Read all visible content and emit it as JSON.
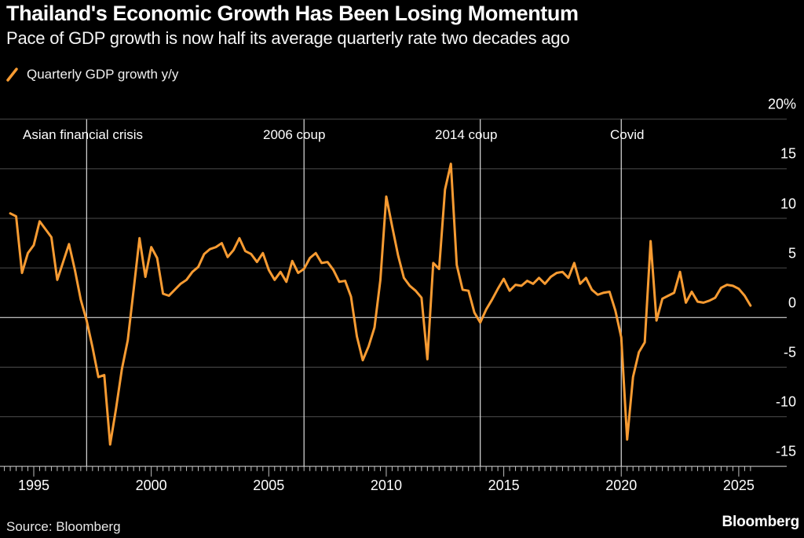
{
  "header": {
    "title": "Thailand's Economic Growth Has Been Losing Momentum",
    "subtitle": "Pace of GDP growth is now half its average quarterly rate two decades ago"
  },
  "legend": {
    "label": "Quarterly GDP growth y/y",
    "color": "#F79B32"
  },
  "footer": {
    "source": "Source: Bloomberg",
    "logo": "Bloomberg"
  },
  "colors": {
    "background": "#000000",
    "line": "#F79B32",
    "grid": "#4d4d4d",
    "zero_line": "#f2f2f2",
    "axis_line": "#d8d8d8",
    "event_line": "#dedede",
    "tick": "#c0c0c0",
    "text": "#ffffff"
  },
  "chart_data": {
    "type": "line",
    "title": "Thailand's Economic Growth Has Been Losing Momentum",
    "xlabel": "",
    "ylabel": "Quarterly GDP growth y/y (%)",
    "x_range": [
      1993.5,
      2027.0
    ],
    "y_range": [
      -15,
      20
    ],
    "grid": true,
    "legend_position": "top-left",
    "y_ticks": [
      {
        "value": 20,
        "text": "20%"
      },
      {
        "value": 15,
        "text": "15"
      },
      {
        "value": 10,
        "text": "10"
      },
      {
        "value": 5,
        "text": "5"
      },
      {
        "value": 0,
        "text": "0"
      },
      {
        "value": -5,
        "text": "-5"
      },
      {
        "value": -10,
        "text": "-10"
      },
      {
        "value": -15,
        "text": "-15"
      }
    ],
    "x_ticks_major": [
      1995,
      2000,
      2005,
      2010,
      2015,
      2020,
      2025
    ],
    "minor_tick_step_years": 0.25,
    "events": [
      {
        "label": "Asian financial crisis",
        "year": 1997.25,
        "label_x": 29
      },
      {
        "label": "2006 coup",
        "year": 2006.5,
        "label_x": 335
      },
      {
        "label": "2014 coup",
        "year": 2014.0,
        "label_x": 554
      },
      {
        "label": "Covid",
        "year": 2020.0,
        "label_x": 777
      }
    ],
    "series": [
      {
        "name": "Quarterly GDP growth y/y",
        "color": "#F79B32",
        "x_start": 1994.0,
        "x_step": 0.25,
        "values": [
          10.5,
          10.2,
          4.5,
          6.5,
          7.3,
          9.7,
          8.9,
          8.1,
          3.8,
          5.6,
          7.4,
          4.8,
          1.8,
          -0.3,
          -3.0,
          -6.0,
          -5.8,
          -12.8,
          -9.2,
          -5.2,
          -2.3,
          2.8,
          8.0,
          4.1,
          7.1,
          6.0,
          2.4,
          2.2,
          2.8,
          3.4,
          3.8,
          4.6,
          5.1,
          6.4,
          6.9,
          7.1,
          7.5,
          6.1,
          6.8,
          8.0,
          6.7,
          6.4,
          5.6,
          6.5,
          4.8,
          3.8,
          4.6,
          3.6,
          5.7,
          4.5,
          4.9,
          6.0,
          6.5,
          5.5,
          5.6,
          4.8,
          3.6,
          3.7,
          2.1,
          -1.9,
          -4.3,
          -2.9,
          -1.0,
          3.8,
          12.2,
          9.2,
          6.3,
          4.0,
          3.2,
          2.7,
          2.0,
          -4.2,
          5.5,
          4.9,
          12.9,
          15.5,
          5.3,
          2.8,
          2.7,
          0.5,
          -0.5,
          0.8,
          1.8,
          2.9,
          3.9,
          2.7,
          3.3,
          3.2,
          3.7,
          3.4,
          4.0,
          3.4,
          4.1,
          4.5,
          4.6,
          4.0,
          5.5,
          3.4,
          4.0,
          2.8,
          2.3,
          2.5,
          2.6,
          0.7,
          -2.0,
          -12.3,
          -6.0,
          -3.5,
          -2.5,
          7.7,
          -0.3,
          1.9,
          2.2,
          2.5,
          4.6,
          1.5,
          2.6,
          1.6,
          1.5,
          1.7,
          2.0,
          3.0,
          3.3,
          3.2,
          2.9,
          2.2,
          1.2
        ]
      }
    ]
  }
}
